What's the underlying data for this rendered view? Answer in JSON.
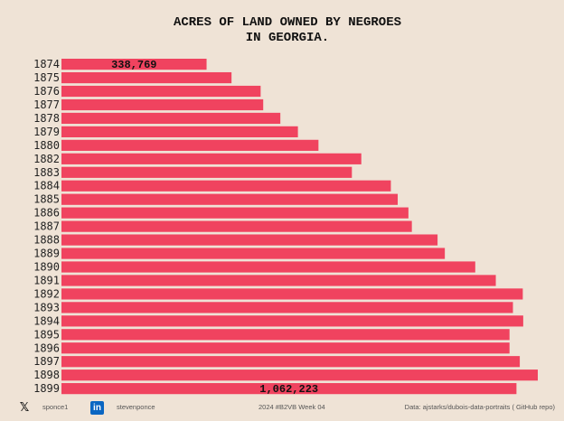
{
  "title": [
    "ACRES OF LAND OWNED BY NEGROES",
    "IN GEORGIA."
  ],
  "chart_data": {
    "type": "bar",
    "orientation": "horizontal",
    "categories": [
      "1874",
      "1875",
      "1876",
      "1877",
      "1878",
      "1879",
      "1880",
      "1882",
      "1883",
      "1884",
      "1885",
      "1886",
      "1887",
      "1888",
      "1889",
      "1890",
      "1891",
      "1892",
      "1893",
      "1894",
      "1895",
      "1896",
      "1897",
      "1898",
      "1899"
    ],
    "values": [
      338769,
      397000,
      465000,
      471000,
      511000,
      552000,
      600000,
      700000,
      678000,
      769000,
      785000,
      810000,
      818000,
      878000,
      895000,
      966000,
      1014000,
      1077000,
      1054000,
      1078000,
      1046000,
      1046000,
      1070000,
      1112000,
      1062223
    ],
    "data_labels": {
      "1874": "338,769",
      "1899": "1,062,223"
    },
    "bar_color": "#f0435f",
    "xlim": [
      0,
      1150000
    ],
    "grid": false,
    "legend": "none"
  },
  "footer": {
    "x_icon": "x-logo-icon",
    "x_handle": "sponce1",
    "linkedin_icon": "linkedin-icon",
    "linkedin_badge": "in",
    "linkedin_handle": "stevenponce",
    "week": "2024 #B2VB Week 04",
    "source": "Data: ajstarks/dubois-data-portraits ( GitHub repo)"
  }
}
